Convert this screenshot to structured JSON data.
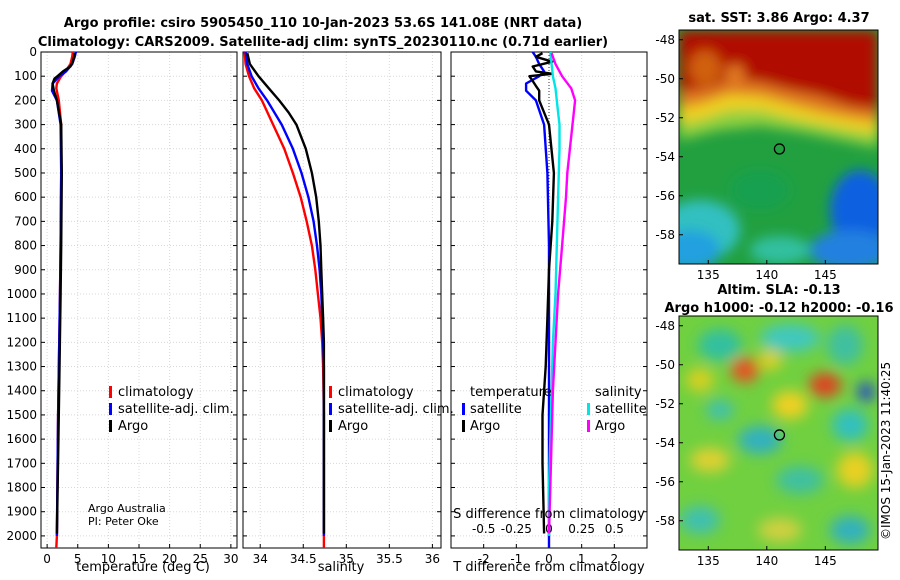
{
  "titles": {
    "line1": "Argo profile: csiro 5905450_110 10-Jan-2023 53.6S 141.08E (NRT data)",
    "line2": "Climatology: CARS2009. Satellite-adj clim: synTS_20230110.nc (0.71d earlier)"
  },
  "credit": {
    "line1": "Argo Australia",
    "line2": "PI: Peter Oke"
  },
  "watermark": "©IMOS 15-Jan-2023 11:40:25",
  "colors": {
    "climatology": "#ff0000",
    "satellite": "#0000ff",
    "argo": "#000000",
    "sal_satellite": "#00e5e5",
    "sal_argo": "#ff00ff"
  },
  "chart_data": [
    {
      "type": "line",
      "id": "temperature",
      "xlabel": "temperature (deg C)",
      "xlim": [
        -1,
        31
      ],
      "ylim": [
        2050,
        0
      ],
      "xticks": [
        0,
        5,
        10,
        15,
        20,
        25,
        30
      ],
      "yticks": [
        0,
        100,
        200,
        300,
        400,
        500,
        600,
        700,
        800,
        900,
        1000,
        1100,
        1200,
        1300,
        1400,
        1500,
        1600,
        1700,
        1800,
        1900,
        2000
      ],
      "legend": [
        "climatology",
        "satellite-adj. clim.",
        "Argo"
      ],
      "series": [
        {
          "name": "climatology",
          "depth": [
            0,
            20,
            50,
            80,
            100,
            130,
            150,
            200,
            300,
            500,
            800,
            1000,
            1500,
            2000,
            2050
          ],
          "values": [
            4.2,
            4.1,
            3.8,
            3.0,
            2.3,
            1.6,
            1.5,
            1.9,
            2.3,
            2.3,
            2.2,
            2.1,
            1.8,
            1.6,
            1.5
          ]
        },
        {
          "name": "satellite-adj. clim.",
          "depth": [
            0,
            20,
            50,
            80,
            100,
            130,
            160,
            200,
            300,
            500,
            800,
            1000,
            1500,
            2000
          ],
          "values": [
            4.7,
            4.5,
            4.1,
            3.1,
            2.0,
            0.9,
            0.8,
            1.6,
            2.2,
            2.3,
            2.2,
            2.1,
            1.8,
            1.6
          ]
        },
        {
          "name": "Argo",
          "depth": [
            5,
            20,
            40,
            60,
            80,
            100,
            110,
            130,
            160,
            200,
            300,
            500,
            800,
            1000,
            1500,
            1990
          ],
          "values": [
            4.5,
            4.4,
            4.2,
            3.8,
            2.6,
            1.7,
            1.2,
            0.9,
            1.1,
            1.6,
            2.3,
            2.4,
            2.3,
            2.2,
            1.9,
            1.6
          ]
        }
      ]
    },
    {
      "type": "line",
      "id": "salinity",
      "xlabel": "salinity",
      "xlim": [
        33.8,
        36.1
      ],
      "ylim": [
        2050,
        0
      ],
      "xticks": [
        34,
        34.5,
        35,
        35.5,
        36
      ],
      "legend": [
        "climatology",
        "satellite-adj. clim.",
        "Argo"
      ],
      "series": [
        {
          "name": "climatology",
          "depth": [
            0,
            50,
            100,
            150,
            200,
            300,
            400,
            500,
            600,
            700,
            800,
            900,
            1000,
            1100,
            1200,
            1300,
            1500,
            2050
          ],
          "values": [
            33.82,
            33.83,
            33.87,
            33.93,
            34.02,
            34.15,
            34.28,
            34.38,
            34.47,
            34.54,
            34.6,
            34.64,
            34.67,
            34.7,
            34.72,
            34.73,
            34.74,
            34.74
          ]
        },
        {
          "name": "satellite-adj. clim.",
          "depth": [
            0,
            50,
            100,
            150,
            200,
            300,
            400,
            500,
            600,
            700,
            800,
            900,
            1000,
            1100,
            1200,
            1300,
            1500,
            2000
          ],
          "values": [
            33.83,
            33.85,
            33.9,
            33.98,
            34.08,
            34.25,
            34.38,
            34.48,
            34.56,
            34.62,
            34.66,
            34.69,
            34.71,
            34.72,
            34.73,
            34.74,
            34.74,
            34.74
          ]
        },
        {
          "name": "Argo",
          "depth": [
            5,
            50,
            100,
            150,
            200,
            250,
            300,
            400,
            500,
            600,
            700,
            800,
            900,
            1000,
            1100,
            1200,
            1300,
            1500,
            1990
          ],
          "values": [
            33.85,
            33.88,
            33.98,
            34.1,
            34.22,
            34.33,
            34.42,
            34.53,
            34.6,
            34.65,
            34.68,
            34.7,
            34.71,
            34.72,
            34.73,
            34.74,
            34.74,
            34.74,
            34.74
          ]
        }
      ]
    },
    {
      "type": "line",
      "id": "difference",
      "xlabel": "T difference from climatology",
      "xlabel_top": "S difference from climatology",
      "xlim": [
        -3,
        3
      ],
      "ylim": [
        2050,
        0
      ],
      "xticks": [
        -2,
        -1,
        0,
        1,
        2
      ],
      "xticks_s": [
        -0.5,
        -0.25,
        0,
        0.25,
        0.5
      ],
      "xticklabels_s": [
        "-0.5",
        "-0.25",
        "0",
        "0.25",
        "0.5"
      ],
      "legend_temperature_title": "temperature",
      "legend_salinity_title": "salinity",
      "legend": [
        "satellite",
        "Argo"
      ],
      "series": [
        {
          "name": "temperature satellite",
          "depth": [
            0,
            20,
            50,
            80,
            100,
            130,
            160,
            200,
            300,
            500,
            800,
            1000,
            1500,
            2000,
            2050
          ],
          "values": [
            -0.5,
            -0.4,
            -0.3,
            -0.15,
            -0.3,
            -0.7,
            -0.7,
            -0.4,
            -0.15,
            -0.05,
            0,
            0,
            0,
            0,
            0
          ]
        },
        {
          "name": "temperature Argo",
          "depth": [
            5,
            20,
            40,
            60,
            80,
            90,
            100,
            120,
            140,
            160,
            200,
            300,
            500,
            700,
            900,
            1100,
            1300,
            1500,
            1700,
            1990
          ],
          "values": [
            -0.2,
            -0.4,
            0.1,
            -0.5,
            -0.4,
            0.1,
            -0.6,
            -0.5,
            -0.4,
            -0.3,
            -0.3,
            0,
            0.15,
            0.1,
            0,
            -0.05,
            -0.1,
            -0.2,
            -0.2,
            -0.15
          ]
        },
        {
          "name": "salinity satellite",
          "depth": [
            0,
            50,
            100,
            150,
            200,
            250,
            300,
            400,
            600,
            800,
            1000,
            1200,
            1400,
            1600,
            1800,
            2000
          ],
          "values": [
            0.01,
            0.02,
            0.03,
            0.05,
            0.06,
            0.07,
            0.08,
            0.08,
            0.07,
            0.06,
            0.05,
            0.03,
            0.02,
            0.01,
            0,
            0
          ]
        },
        {
          "name": "salinity Argo",
          "depth": [
            5,
            50,
            100,
            150,
            200,
            250,
            300,
            400,
            500,
            600,
            800,
            1000,
            1200,
            1400,
            1600,
            1800,
            1990
          ],
          "values": [
            0.02,
            0.05,
            0.1,
            0.17,
            0.2,
            0.19,
            0.18,
            0.16,
            0.14,
            0.13,
            0.1,
            0.07,
            0.05,
            0.03,
            0.02,
            0.01,
            0
          ]
        }
      ]
    },
    {
      "type": "heatmap",
      "id": "sst_map",
      "title": "sat. SST: 3.86 Argo: 4.37",
      "xlim": [
        132.5,
        149.5
      ],
      "ylim": [
        -59.5,
        -47.5
      ],
      "xticks": [
        135,
        140,
        145
      ],
      "yticks": [
        -48,
        -50,
        -52,
        -54,
        -56,
        -58
      ],
      "marker": {
        "lon": 141.08,
        "lat": -53.6
      }
    },
    {
      "type": "heatmap",
      "id": "sla_map",
      "title": "Altim. SLA: -0.13",
      "title2": "Argo h1000: -0.12 h2000: -0.16",
      "xlim": [
        132.5,
        149.5
      ],
      "ylim": [
        -59.5,
        -47.5
      ],
      "xticks": [
        135,
        140,
        145
      ],
      "yticks": [
        -48,
        -50,
        -52,
        -54,
        -56,
        -58
      ],
      "marker": {
        "lon": 141.08,
        "lat": -53.6
      }
    }
  ]
}
